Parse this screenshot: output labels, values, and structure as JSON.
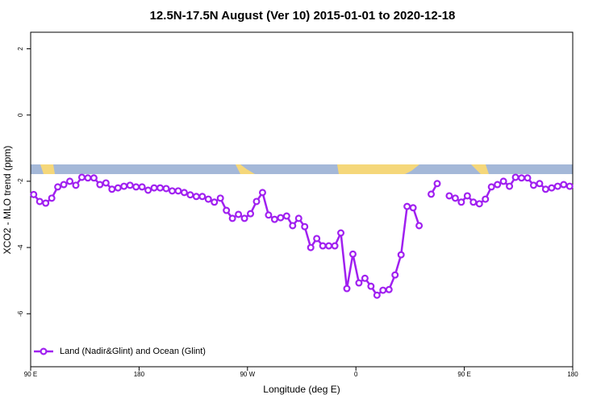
{
  "chart_data": {
    "type": "line",
    "title": "12.5N-17.5N August (Ver 10)   2015-01-01 to 2020-12-18",
    "x_label": "Longitude (deg E)",
    "y_label": "XCO2 - MLO trend (ppm)",
    "xlim": [
      90,
      540
    ],
    "ylim": [
      -7.6,
      2.5
    ],
    "xticks": [
      {
        "value": 90,
        "label": "90 E"
      },
      180,
      {
        "value": 270,
        "label": "90 W"
      },
      {
        "value": 360,
        "label": "0"
      },
      {
        "value": 450,
        "label": "90 E"
      },
      {
        "value": 540,
        "label": "180"
      }
    ],
    "yticks": [
      -6,
      -4,
      -2,
      0,
      2
    ],
    "legend": "bottom-left",
    "series": [
      {
        "name": "Land (Nadir&Glint) and Ocean (Glint)",
        "color": "#a020f0",
        "x": [
          92.5,
          97.5,
          102.5,
          107.5,
          112.5,
          117.5,
          122.5,
          127.5,
          132.5,
          137.5,
          142.5,
          147.5,
          152.5,
          157.5,
          162.5,
          167.5,
          172.5,
          177.5,
          182.5,
          187.5,
          192.5,
          197.5,
          202.5,
          207.5,
          212.5,
          217.5,
          222.5,
          227.5,
          232.5,
          237.5,
          242.5,
          247.5,
          252.5,
          257.5,
          262.5,
          267.5,
          272.5,
          277.5,
          282.5,
          287.5,
          292.5,
          297.5,
          302.5,
          307.5,
          312.5,
          317.5,
          322.5,
          327.5,
          332.5,
          337.5,
          342.5,
          347.5,
          352.5,
          357.5,
          362.5,
          367.5,
          372.5,
          377.5,
          382.5,
          387.5,
          392.5,
          397.5,
          402.5,
          407.5,
          412.5,
          417.5,
          422.5,
          427.5,
          432.5,
          437.5,
          442.5,
          447.5,
          452.5,
          457.5,
          462.5,
          467.5,
          472.5,
          477.5,
          482.5,
          487.5,
          492.5,
          497.5,
          502.5,
          507.5,
          512.5,
          517.5,
          522.5,
          527.5,
          532.5,
          537.5
        ],
        "values": [
          -2.4,
          -2.61,
          -2.66,
          -2.51,
          -2.17,
          -2.1,
          -2.0,
          -2.12,
          -1.88,
          -1.9,
          -1.9,
          -2.1,
          -2.05,
          -2.24,
          -2.2,
          -2.15,
          -2.12,
          -2.17,
          -2.17,
          -2.27,
          -2.2,
          -2.2,
          -2.22,
          -2.29,
          -2.29,
          -2.34,
          -2.41,
          -2.46,
          -2.46,
          -2.54,
          -2.63,
          -2.51,
          -2.88,
          -3.12,
          -3.0,
          -3.12,
          -2.98,
          -2.61,
          -2.34,
          -3.02,
          -3.15,
          -3.1,
          -3.05,
          -3.34,
          -3.12,
          -3.37,
          -4.0,
          -3.73,
          -3.95,
          -3.95,
          -3.95,
          -3.56,
          -5.24,
          -4.2,
          -5.07,
          -4.93,
          -5.17,
          -5.44,
          -5.29,
          -5.27,
          -4.83,
          -4.22,
          -2.76,
          -2.8,
          -3.34,
          null,
          -2.39,
          -2.07,
          null,
          -2.44,
          -2.51,
          -2.63,
          -2.44,
          -2.63,
          -2.68,
          -2.54,
          -2.17,
          -2.1,
          -2.0,
          -2.15,
          -1.88,
          -1.9,
          -1.9,
          -2.12,
          -2.07,
          -2.24,
          -2.2,
          -2.15,
          -2.1,
          -2.15
        ]
      }
    ]
  }
}
